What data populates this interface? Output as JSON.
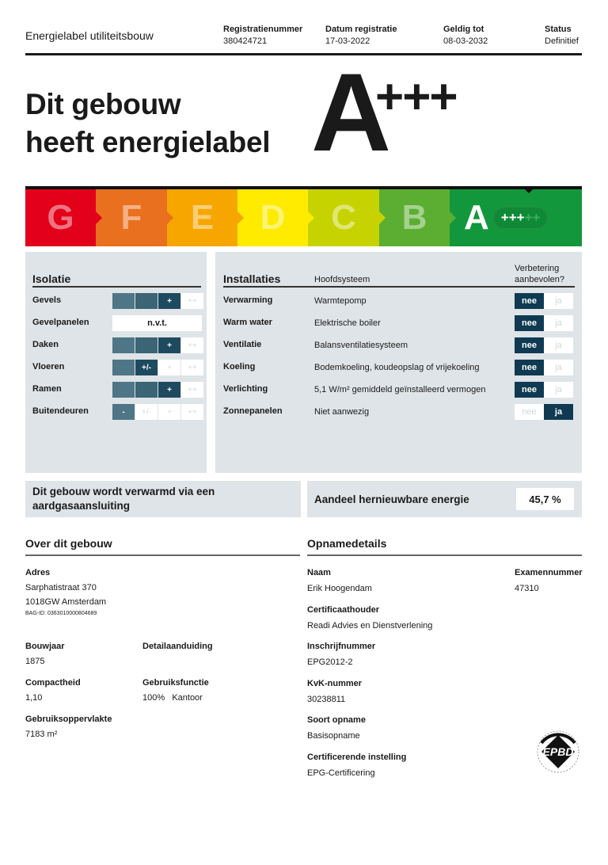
{
  "header": {
    "title": "Energielabel utiliteitsbouw",
    "columns": [
      {
        "label": "Registratienummer",
        "value": "380424721"
      },
      {
        "label": "Datum registratie",
        "value": "17-03-2022"
      },
      {
        "label": "Geldig tot",
        "value": "08-03-2032"
      },
      {
        "label": "Status",
        "value": "Definitief"
      }
    ]
  },
  "hero": {
    "line1": "Dit gebouw",
    "line2": "heeft energielabel",
    "label": "A",
    "plus": "+++"
  },
  "scale": {
    "classes": [
      {
        "letter": "G",
        "color": "#e2001a"
      },
      {
        "letter": "F",
        "color": "#e8701f"
      },
      {
        "letter": "E",
        "color": "#f7a600"
      },
      {
        "letter": "D",
        "color": "#ffeb00"
      },
      {
        "letter": "C",
        "color": "#c6d300"
      },
      {
        "letter": "B",
        "color": "#5cae32"
      },
      {
        "letter": "A",
        "color": "#13973c"
      }
    ],
    "active": "A",
    "active_plus": "+++",
    "inactive_plus": "++"
  },
  "isolatie": {
    "title": "Isolatie",
    "rows": [
      {
        "label": "Gevels",
        "cells": [
          "",
          "",
          "+",
          "++"
        ],
        "level": 3
      },
      {
        "label": "Gevelpanelen",
        "value": "n.v.t."
      },
      {
        "label": "Daken",
        "cells": [
          "",
          "",
          "+",
          "++"
        ],
        "level": 3
      },
      {
        "label": "Vloeren",
        "cells": [
          "",
          "+/-",
          "+",
          "++"
        ],
        "level": 2
      },
      {
        "label": "Ramen",
        "cells": [
          "",
          "",
          "+",
          "++"
        ],
        "level": 3
      },
      {
        "label": "Buitendeuren",
        "cells": [
          "-",
          "+/-",
          "+",
          "++"
        ],
        "level": 1
      }
    ]
  },
  "installaties": {
    "title": "Installaties",
    "col_system": "Hoofdsysteem",
    "col_improve": "Verbetering aanbevolen?",
    "no": "nee",
    "yes": "ja",
    "rows": [
      {
        "label": "Verwarming",
        "system": "Warmtepomp",
        "improve": "nee"
      },
      {
        "label": "Warm water",
        "system": "Elektrische boiler",
        "improve": "nee"
      },
      {
        "label": "Ventilatie",
        "system": "Balansventilatiesysteem",
        "improve": "nee"
      },
      {
        "label": "Koeling",
        "system": "Bodemkoeling, koudeopslag of vrijekoeling",
        "improve": "nee"
      },
      {
        "label": "Verlichting",
        "system": "5,1 W/m² gemiddeld geïnstalleerd vermogen",
        "improve": "nee"
      },
      {
        "label": "Zonnepanelen",
        "system": "Niet aanwezig",
        "improve": "ja"
      }
    ]
  },
  "gas": {
    "text": "Dit gebouw wordt verwarmd via een aardgasaansluiting"
  },
  "renewable": {
    "label": "Aandeel hernieuwbare energie",
    "value": "45,7 %"
  },
  "building": {
    "title": "Over dit gebouw",
    "adres_label": "Adres",
    "street": "Sarphatistraat 370",
    "city": "1018GW Amsterdam",
    "bag": "BAG-ID: 0363010000804689",
    "bouwjaar_label": "Bouwjaar",
    "bouwjaar": "1875",
    "detail_label": "Detailaanduiding",
    "compact_label": "Compactheid",
    "compact": "1,10",
    "functie_label": "Gebruiksfunctie",
    "functie_pct": "100%",
    "functie": "Kantoor",
    "opp_label": "Gebruiksoppervlakte",
    "opp": "7183 m²"
  },
  "opname": {
    "title": "Opnamedetails",
    "naam_label": "Naam",
    "naam": "Erik Hoogendam",
    "exam_label": "Examennummer",
    "exam": "47310",
    "cert_label": "Certificaathouder",
    "cert": "Readi Advies en Dienstverlening",
    "insch_label": "Inschrijfnummer",
    "insch": "EPG2012-2",
    "kvk_label": "KvK-nummer",
    "kvk": "30238811",
    "soort_label": "Soort opname",
    "soort": "Basisopname",
    "inst_label": "Certificerende instelling",
    "inst": "EPG-Certificering",
    "logo": "EPBD"
  }
}
